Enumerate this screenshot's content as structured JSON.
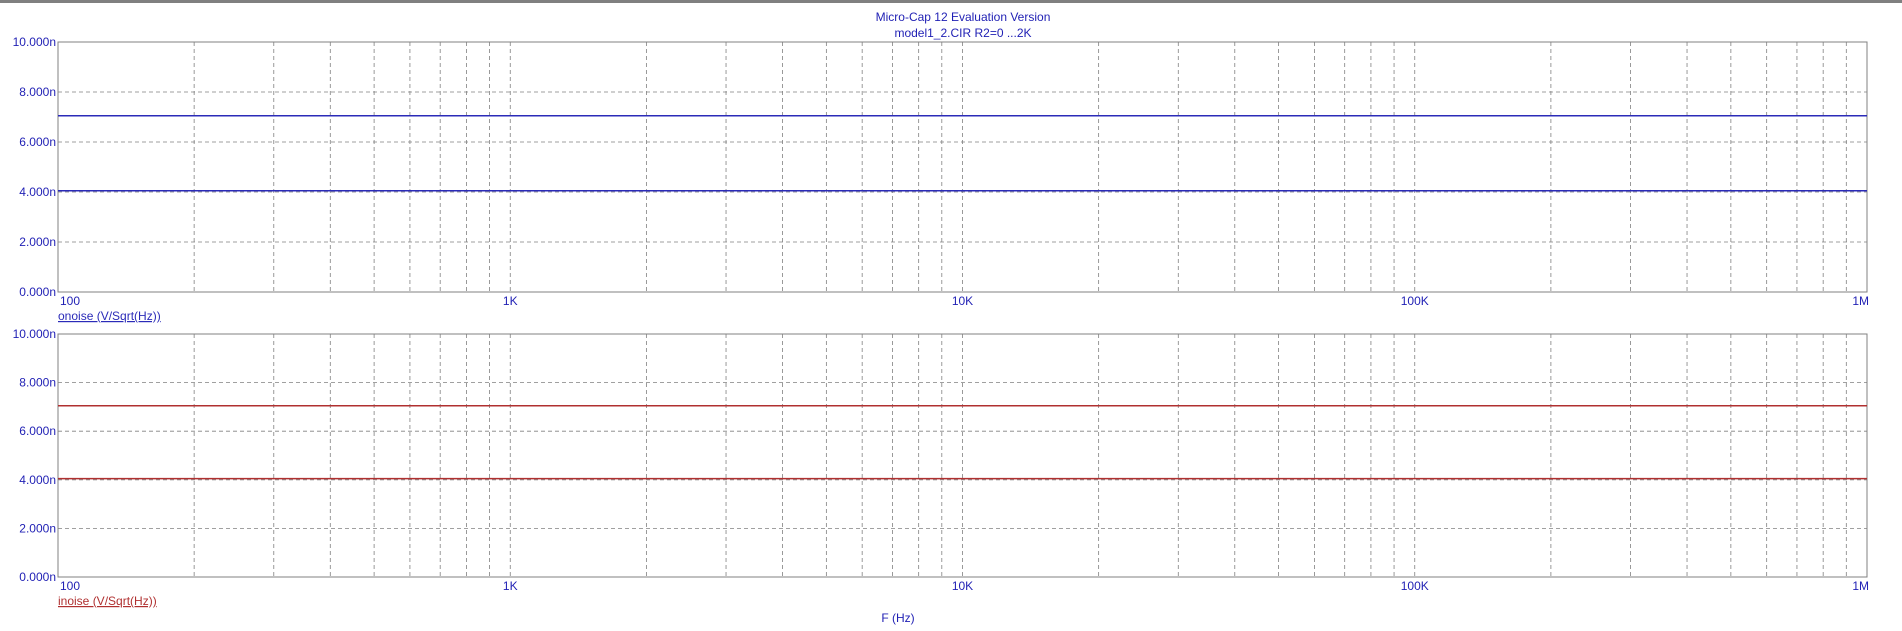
{
  "header": {
    "title": "Micro-Cap 12 Evaluation Version",
    "subtitle": "model1_2.CIR R2=0 ...2K"
  },
  "colors": {
    "top_accent": "#808080",
    "title_text": "#1f1fb4",
    "grid": "#808080",
    "axis_text": "#1f1fb4",
    "onoise_trace": "#2b2bb8",
    "inoise_trace": "#b03030"
  },
  "chart_data": [
    {
      "type": "line",
      "title": "Micro-Cap 12 Evaluation Version",
      "subtitle": "model1_2.CIR R2=0 ...2K",
      "xscale": "log",
      "xlim": [
        100,
        1000000
      ],
      "ylim": [
        0,
        10
      ],
      "grid": true,
      "xtick_labels": [
        "100",
        "1K",
        "10K",
        "100K",
        "1M"
      ],
      "ytick_labels": [
        "0.000n",
        "2.000n",
        "4.000n",
        "6.000n",
        "8.000n",
        "10.000n"
      ],
      "ylabel": "onoise (V/Sqrt(Hz))",
      "xlabel": "",
      "series": [
        {
          "x": [
            100,
            1000000
          ],
          "values": [
            7.05,
            7.05
          ]
        },
        {
          "x": [
            100,
            1000000
          ],
          "values": [
            4.05,
            4.05
          ]
        }
      ]
    },
    {
      "type": "line",
      "xscale": "log",
      "xlim": [
        100,
        1000000
      ],
      "ylim": [
        0,
        10
      ],
      "grid": true,
      "xtick_labels": [
        "100",
        "1K",
        "10K",
        "100K",
        "1M"
      ],
      "ytick_labels": [
        "0.000n",
        "2.000n",
        "4.000n",
        "6.000n",
        "8.000n",
        "10.000n"
      ],
      "ylabel": "inoise (V/Sqrt(Hz))",
      "xlabel": "F (Hz)",
      "series": [
        {
          "x": [
            100,
            1000000
          ],
          "values": [
            7.05,
            7.05
          ]
        },
        {
          "x": [
            100,
            1000000
          ],
          "values": [
            4.05,
            4.05
          ]
        }
      ]
    }
  ]
}
